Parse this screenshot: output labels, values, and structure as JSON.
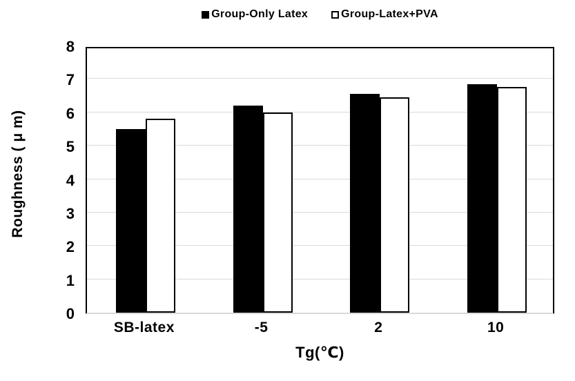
{
  "chart_data": {
    "type": "bar",
    "title": "",
    "categories": [
      "SB-latex",
      "-5",
      "2",
      "10"
    ],
    "series": [
      {
        "name": "Group-Only Latex",
        "marker": "filled-square",
        "fill": "#000000",
        "values": [
          5.5,
          6.2,
          6.55,
          6.85
        ]
      },
      {
        "name": "Group-Latex+PVA",
        "marker": "open-square",
        "fill": "#ffffff",
        "values": [
          5.8,
          6.0,
          6.45,
          6.75
        ]
      }
    ],
    "xlabel": "Tg(℃)",
    "ylabel": "Roughness ( μ m)",
    "ylim": [
      0,
      8
    ],
    "ytick_step": 1,
    "yticks": [
      0,
      1,
      2,
      3,
      4,
      5,
      6,
      7,
      8
    ],
    "grid": "horizontal",
    "legend_position": "top",
    "colors": {
      "grid": "#d9d9d9",
      "axis_frame": "#000000",
      "bar_outline": "#000000",
      "text": "#000000"
    }
  }
}
